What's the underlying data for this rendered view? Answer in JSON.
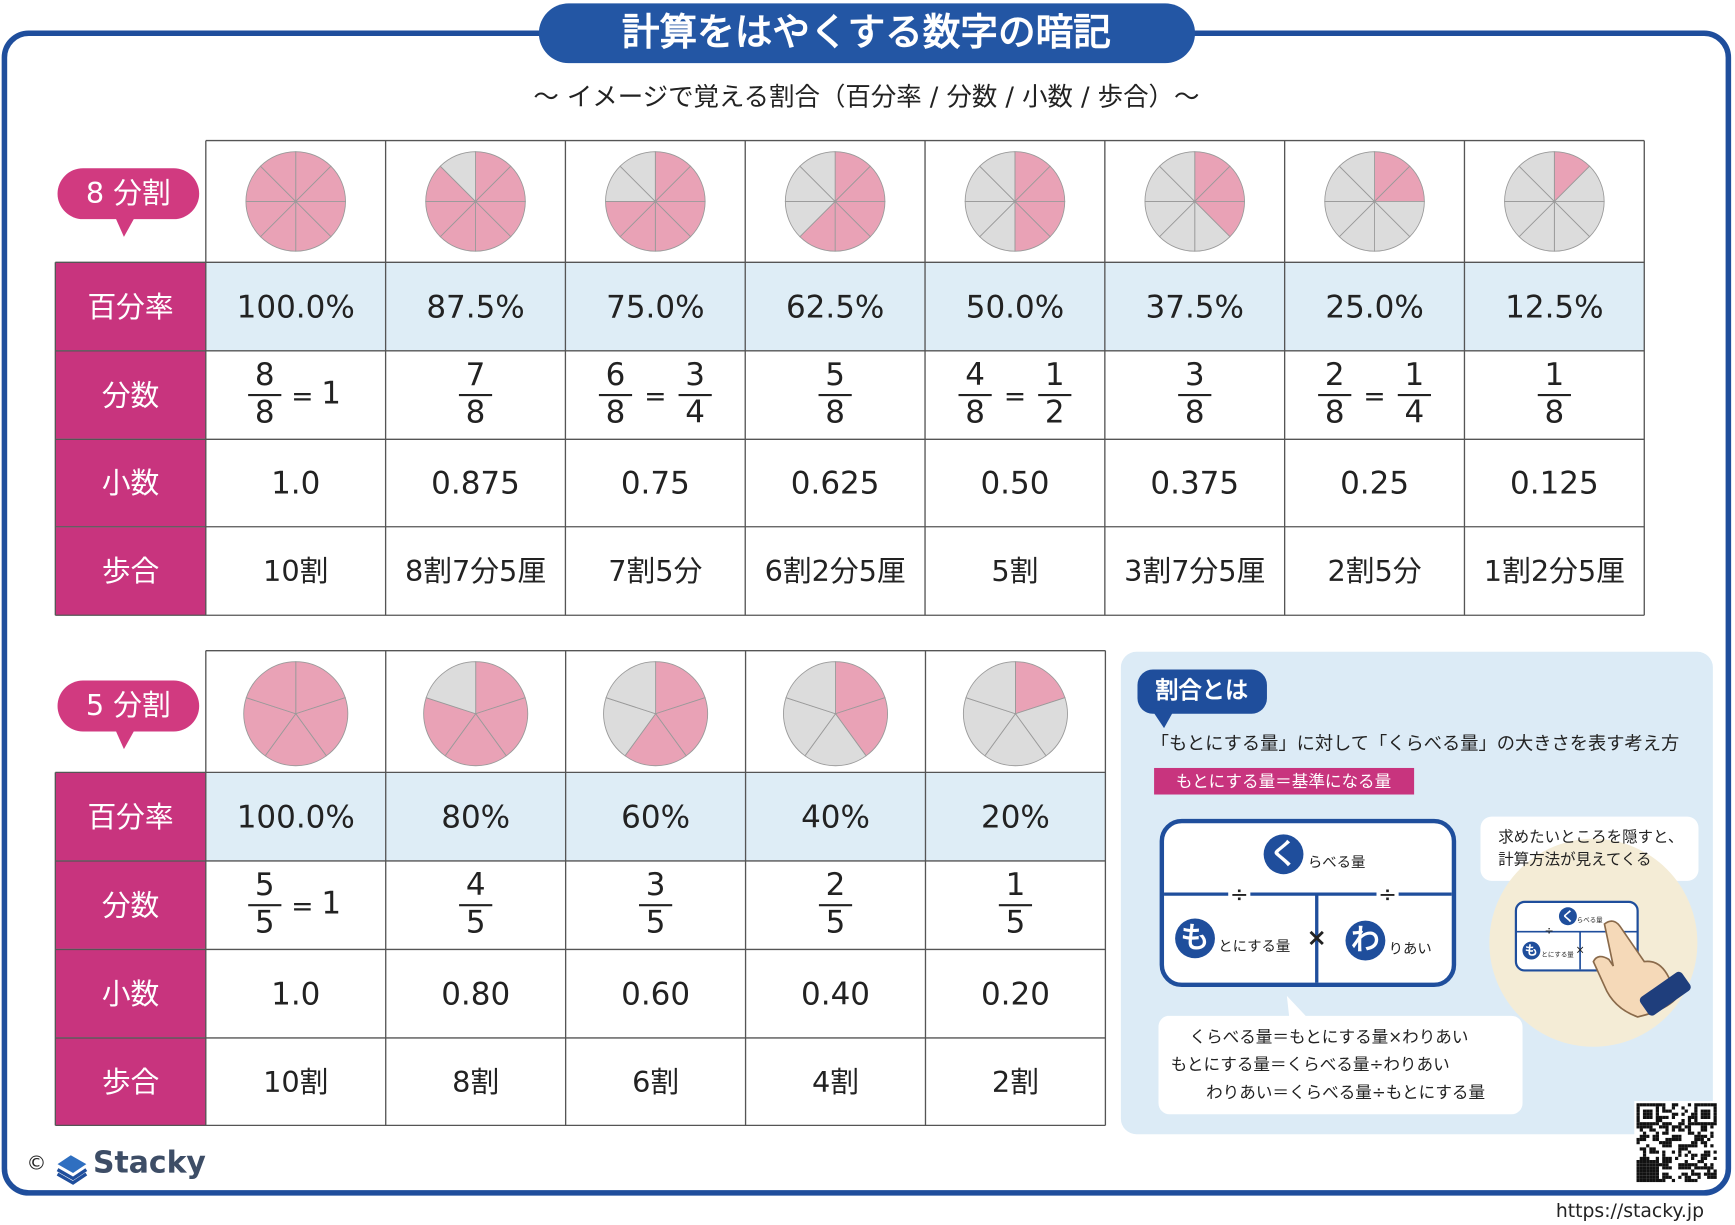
{
  "title": "計算をはやくする数字の暗記",
  "subtitle": "〜 イメージで覚える割合（百分率 / 分数 / 小数 / 歩合）〜",
  "tables": [
    {
      "label": "8 分割",
      "row_labels": [
        "百分率",
        "分数",
        "小数",
        "歩合"
      ],
      "percent": [
        "100.0%",
        "87.5%",
        "75.0%",
        "62.5%",
        "50.0%",
        "37.5%",
        "25.0%",
        "12.5%"
      ],
      "fractions": [
        {
          "num": "8",
          "den": "8",
          "eq": "1"
        },
        {
          "num": "7",
          "den": "8"
        },
        {
          "num": "6",
          "den": "8",
          "eq_num": "3",
          "eq_den": "4"
        },
        {
          "num": "5",
          "den": "8"
        },
        {
          "num": "4",
          "den": "8",
          "eq_num": "1",
          "eq_den": "2"
        },
        {
          "num": "3",
          "den": "8"
        },
        {
          "num": "2",
          "den": "8",
          "eq_num": "1",
          "eq_den": "4"
        },
        {
          "num": "1",
          "den": "8"
        }
      ],
      "equals": "=",
      "decimal": [
        "1.0",
        "0.875",
        "0.75",
        "0.625",
        "0.50",
        "0.375",
        "0.25",
        "0.125"
      ],
      "buai": [
        "10割",
        "8割7分5厘",
        "7割5分",
        "6割2分5厘",
        "5割",
        "3割7分5厘",
        "2割5分",
        "1割2分5厘"
      ]
    },
    {
      "label": "5 分割",
      "row_labels": [
        "百分率",
        "分数",
        "小数",
        "歩合"
      ],
      "percent": [
        "100.0%",
        "80%",
        "60%",
        "40%",
        "20%"
      ],
      "fractions": [
        {
          "num": "5",
          "den": "5",
          "eq": "1"
        },
        {
          "num": "4",
          "den": "5"
        },
        {
          "num": "3",
          "den": "5"
        },
        {
          "num": "2",
          "den": "5"
        },
        {
          "num": "1",
          "den": "5"
        }
      ],
      "equals": "=",
      "decimal": [
        "1.0",
        "0.80",
        "0.60",
        "0.40",
        "0.20"
      ],
      "buai": [
        "10割",
        "8割",
        "6割",
        "4割",
        "2割"
      ]
    }
  ],
  "panel": {
    "heading": "割合とは",
    "description": "「もとにする量」に対して「くらべる量」の大きさを表す考え方",
    "highlight": "もとにする量＝基準になる量",
    "diagram": {
      "kuraberu_initial": "く",
      "kuraberu_rest": "らべる量",
      "moto_initial": "も",
      "moto_rest": "とにする量",
      "wari_initial": "わ",
      "wari_rest": "りあい",
      "divide": "÷",
      "times": "×"
    },
    "hint": [
      "求めたいところを隠すと、",
      "計算方法が見えてくる"
    ],
    "formulas": [
      "くらべる量＝もとにする量×わりあい",
      "もとにする量＝くらべる量÷わりあい",
      "わりあい＝くらべる量÷もとにする量"
    ]
  },
  "footer": {
    "copyright": "©",
    "brand": "Stacky",
    "url": "https://stacky.jp"
  }
}
